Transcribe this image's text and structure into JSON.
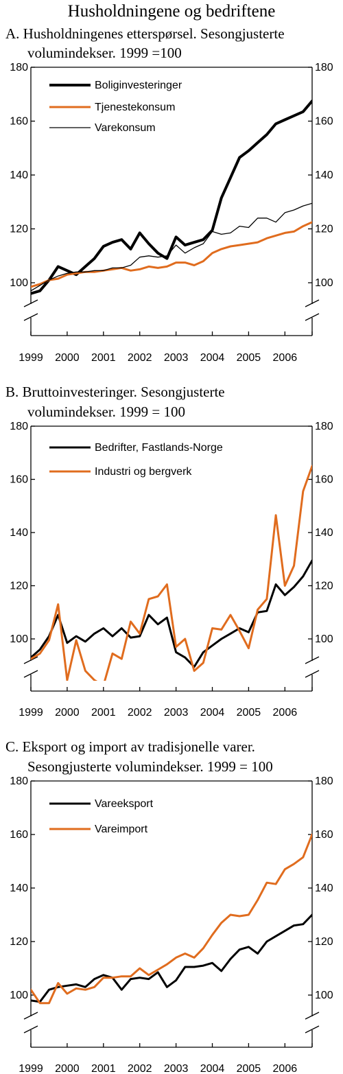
{
  "figure_title": "Husholdningene og bedriftene",
  "colors": {
    "black": "#000000",
    "orange": "#e06c1e"
  },
  "chart_data": [
    {
      "id": "A",
      "type": "line",
      "title_lines": [
        "A.  Husholdningenes etterspørsel. Sesongjusterte",
        "volumindekser. 1999 =100"
      ],
      "xlabel": "",
      "ylabel": "",
      "ylim": [
        90,
        180
      ],
      "yticks": [
        100,
        120,
        140,
        160,
        180
      ],
      "xtick_labels": [
        "1999",
        "2000",
        "2001",
        "2002",
        "2003",
        "2004",
        "2005",
        "2006"
      ],
      "axis_break": true,
      "legend_position": "top-left",
      "x": [
        1999.0,
        1999.25,
        1999.5,
        1999.75,
        2000.0,
        2000.25,
        2000.5,
        2000.75,
        2001.0,
        2001.25,
        2001.5,
        2001.75,
        2002.0,
        2002.25,
        2002.5,
        2002.75,
        2003.0,
        2003.25,
        2003.5,
        2003.75,
        2004.0,
        2004.25,
        2004.5,
        2004.75,
        2005.0,
        2005.25,
        2005.5,
        2005.75,
        2006.0,
        2006.25,
        2006.5,
        2006.75
      ],
      "series": [
        {
          "name": "Boliginvesteringer",
          "color": "#000000",
          "width": 4,
          "values": [
            96,
            97,
            101,
            106,
            104.5,
            103,
            106,
            109,
            113.5,
            115,
            116,
            112.5,
            118.5,
            114.5,
            111,
            109,
            117,
            114,
            115,
            116,
            119.5,
            131.5,
            139,
            146.5,
            149,
            152,
            155,
            159,
            160.5,
            162,
            163.5,
            167.5
          ]
        },
        {
          "name": "Tjenestekonsum",
          "color": "#e06c1e",
          "width": 3,
          "values": [
            98.5,
            99.5,
            101,
            101.5,
            103,
            103.5,
            104,
            104,
            104.5,
            105,
            105.5,
            104.5,
            105,
            106,
            105.5,
            106,
            107.5,
            107.5,
            106.5,
            108,
            111,
            112.5,
            113.5,
            114,
            114.5,
            115,
            116.5,
            117.5,
            118.5,
            119,
            121,
            122.5
          ]
        },
        {
          "name": "Varekonsum",
          "color": "#000000",
          "width": 1.3,
          "values": [
            97,
            99,
            101,
            102.5,
            103.5,
            104,
            104,
            104.5,
            104.5,
            105.5,
            105.5,
            106.5,
            109.5,
            110,
            109.5,
            110,
            114,
            111,
            113,
            114.5,
            119,
            118,
            118.5,
            121,
            120.5,
            124,
            124,
            122.5,
            126,
            127,
            128.5,
            129.5
          ]
        }
      ]
    },
    {
      "id": "B",
      "type": "line",
      "title_lines": [
        "B. Bruttoinvesteringer. Sesongjusterte",
        "volumindekser. 1999 = 100"
      ],
      "xlabel": "",
      "ylabel": "",
      "ylim": [
        80,
        180
      ],
      "yticks": [
        100,
        120,
        140,
        160,
        180
      ],
      "xtick_labels": [
        "1999",
        "2000",
        "2001",
        "2002",
        "2003",
        "2004",
        "2005",
        "2006"
      ],
      "axis_break": true,
      "legend_position": "top-left",
      "x": [
        1999.0,
        1999.25,
        1999.5,
        1999.75,
        2000.0,
        2000.25,
        2000.5,
        2000.75,
        2001.0,
        2001.25,
        2001.5,
        2001.75,
        2002.0,
        2002.25,
        2002.5,
        2002.75,
        2003.0,
        2003.25,
        2003.5,
        2003.75,
        2004.0,
        2004.25,
        2004.5,
        2004.75,
        2005.0,
        2005.25,
        2005.5,
        2005.75,
        2006.0,
        2006.25,
        2006.5,
        2006.75
      ],
      "series": [
        {
          "name": "Bedrifter, Fastlands-Norge",
          "color": "#000000",
          "width": 3,
          "values": [
            93,
            96,
            101,
            109,
            98.5,
            101,
            99,
            102,
            104,
            101,
            104,
            100.5,
            101,
            109,
            105.5,
            108,
            95,
            93,
            89.5,
            95,
            97.5,
            100,
            102,
            104,
            102.5,
            110,
            110.5,
            120.5,
            116.5,
            119.5,
            123.5,
            129.5
          ]
        },
        {
          "name": "Industri og bergverk",
          "color": "#e06c1e",
          "width": 3,
          "values": [
            92.5,
            94.5,
            99.5,
            113,
            84.5,
            99.5,
            88,
            84.5,
            82.5,
            94.5,
            92.5,
            106.5,
            102,
            115,
            116,
            120.5,
            97,
            100,
            88,
            91,
            104,
            103.5,
            109,
            103,
            96.5,
            111,
            115,
            146.5,
            120,
            127.5,
            155.5,
            165
          ]
        }
      ]
    },
    {
      "id": "C",
      "type": "line",
      "title_lines": [
        "C. Eksport og import av tradisjonelle varer.",
        "Sesongjusterte volumindekser. 1999 = 100"
      ],
      "xlabel": "",
      "ylabel": "",
      "ylim": [
        90,
        180
      ],
      "yticks": [
        100,
        120,
        140,
        160,
        180
      ],
      "xtick_labels": [
        "1999",
        "2000",
        "2001",
        "2002",
        "2003",
        "2004",
        "2005",
        "2006"
      ],
      "axis_break": true,
      "legend_position": "top-left",
      "x": [
        1999.0,
        1999.25,
        1999.5,
        1999.75,
        2000.0,
        2000.25,
        2000.5,
        2000.75,
        2001.0,
        2001.25,
        2001.5,
        2001.75,
        2002.0,
        2002.25,
        2002.5,
        2002.75,
        2003.0,
        2003.25,
        2003.5,
        2003.75,
        2004.0,
        2004.25,
        2004.5,
        2004.75,
        2005.0,
        2005.25,
        2005.5,
        2005.75,
        2006.0,
        2006.25,
        2006.5,
        2006.75
      ],
      "series": [
        {
          "name": "Vareeksport",
          "color": "#000000",
          "width": 3,
          "values": [
            98,
            97.5,
            102,
            103,
            103.5,
            104,
            103,
            106,
            107.5,
            106.5,
            102,
            106,
            106.5,
            106,
            108.5,
            103,
            105.5,
            110.5,
            110.5,
            111,
            112,
            109,
            113.5,
            117,
            118,
            115.5,
            120,
            122,
            124,
            126,
            126.5,
            130
          ]
        },
        {
          "name": "Vareimport",
          "color": "#e06c1e",
          "width": 3,
          "values": [
            102,
            97,
            97,
            104.5,
            100.5,
            102.5,
            102,
            103,
            106.5,
            106.5,
            107,
            107,
            110,
            107.5,
            109.5,
            111.5,
            114,
            115.5,
            114,
            117.5,
            122.5,
            127,
            130,
            129.5,
            130,
            135.5,
            142,
            141.5,
            147,
            149,
            151.5,
            160
          ]
        }
      ]
    }
  ]
}
